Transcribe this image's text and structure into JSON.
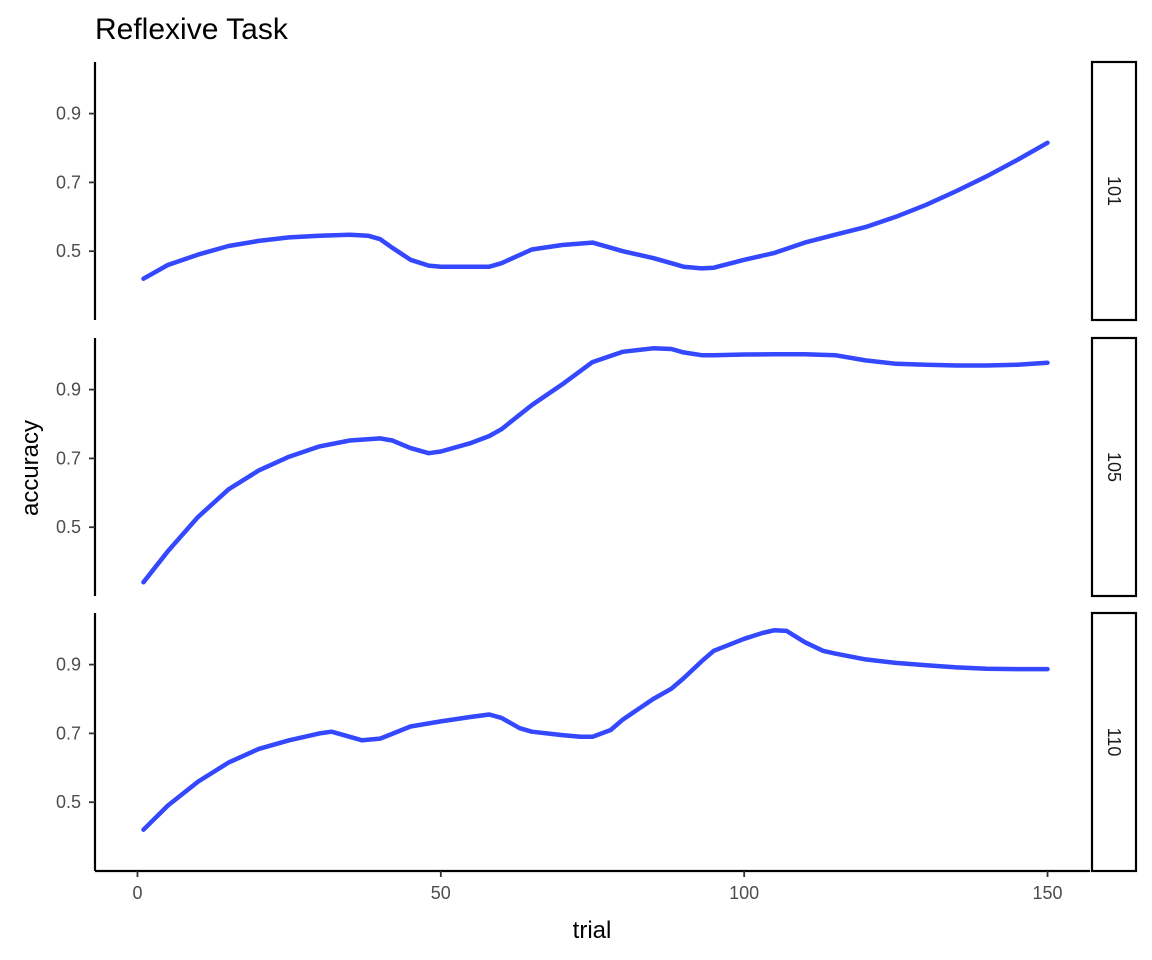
{
  "chart_data": {
    "type": "line",
    "title": "Reflexive Task",
    "xlabel": "trial",
    "ylabel": "accuracy",
    "xlim": [
      -7,
      157
    ],
    "ylim": [
      0.3,
      1.05
    ],
    "x_ticks": [
      0,
      50,
      100,
      150
    ],
    "y_ticks": [
      0.5,
      0.7,
      0.9
    ],
    "grid": false,
    "line_color": "#3348ff",
    "facets": [
      {
        "label": "101",
        "x": [
          1,
          5,
          10,
          15,
          20,
          25,
          30,
          35,
          38,
          40,
          42,
          45,
          48,
          50,
          55,
          58,
          60,
          65,
          70,
          75,
          80,
          85,
          88,
          90,
          93,
          95,
          100,
          105,
          110,
          115,
          120,
          125,
          130,
          135,
          140,
          145,
          150
        ],
        "y": [
          0.42,
          0.46,
          0.49,
          0.515,
          0.53,
          0.54,
          0.545,
          0.548,
          0.545,
          0.535,
          0.51,
          0.475,
          0.458,
          0.455,
          0.455,
          0.455,
          0.465,
          0.505,
          0.518,
          0.525,
          0.5,
          0.48,
          0.465,
          0.455,
          0.45,
          0.452,
          0.475,
          0.495,
          0.525,
          0.548,
          0.57,
          0.6,
          0.635,
          0.675,
          0.718,
          0.765,
          0.815
        ]
      },
      {
        "label": "105",
        "x": [
          1,
          5,
          10,
          15,
          20,
          25,
          30,
          35,
          40,
          42,
          45,
          48,
          50,
          55,
          58,
          60,
          65,
          70,
          75,
          80,
          85,
          88,
          90,
          93,
          95,
          100,
          105,
          110,
          115,
          120,
          125,
          130,
          135,
          140,
          145,
          150
        ],
        "y": [
          0.34,
          0.43,
          0.53,
          0.61,
          0.665,
          0.705,
          0.735,
          0.752,
          0.758,
          0.752,
          0.73,
          0.715,
          0.72,
          0.745,
          0.765,
          0.785,
          0.855,
          0.915,
          0.98,
          1.01,
          1.02,
          1.018,
          1.008,
          1.0,
          1.0,
          1.002,
          1.003,
          1.003,
          1.0,
          0.985,
          0.975,
          0.972,
          0.97,
          0.97,
          0.972,
          0.978
        ]
      },
      {
        "label": "110",
        "x": [
          1,
          5,
          10,
          15,
          20,
          25,
          30,
          32,
          35,
          37,
          40,
          45,
          50,
          55,
          58,
          60,
          63,
          65,
          70,
          73,
          75,
          78,
          80,
          85,
          88,
          90,
          93,
          95,
          100,
          103,
          105,
          107,
          110,
          113,
          115,
          120,
          125,
          130,
          135,
          140,
          145,
          150
        ],
        "y": [
          0.42,
          0.49,
          0.56,
          0.615,
          0.655,
          0.68,
          0.7,
          0.705,
          0.69,
          0.68,
          0.685,
          0.72,
          0.735,
          0.748,
          0.755,
          0.745,
          0.715,
          0.705,
          0.695,
          0.69,
          0.69,
          0.71,
          0.74,
          0.8,
          0.83,
          0.86,
          0.91,
          0.94,
          0.975,
          0.992,
          1.0,
          0.998,
          0.965,
          0.94,
          0.932,
          0.915,
          0.905,
          0.898,
          0.892,
          0.888,
          0.887,
          0.887
        ]
      }
    ]
  }
}
